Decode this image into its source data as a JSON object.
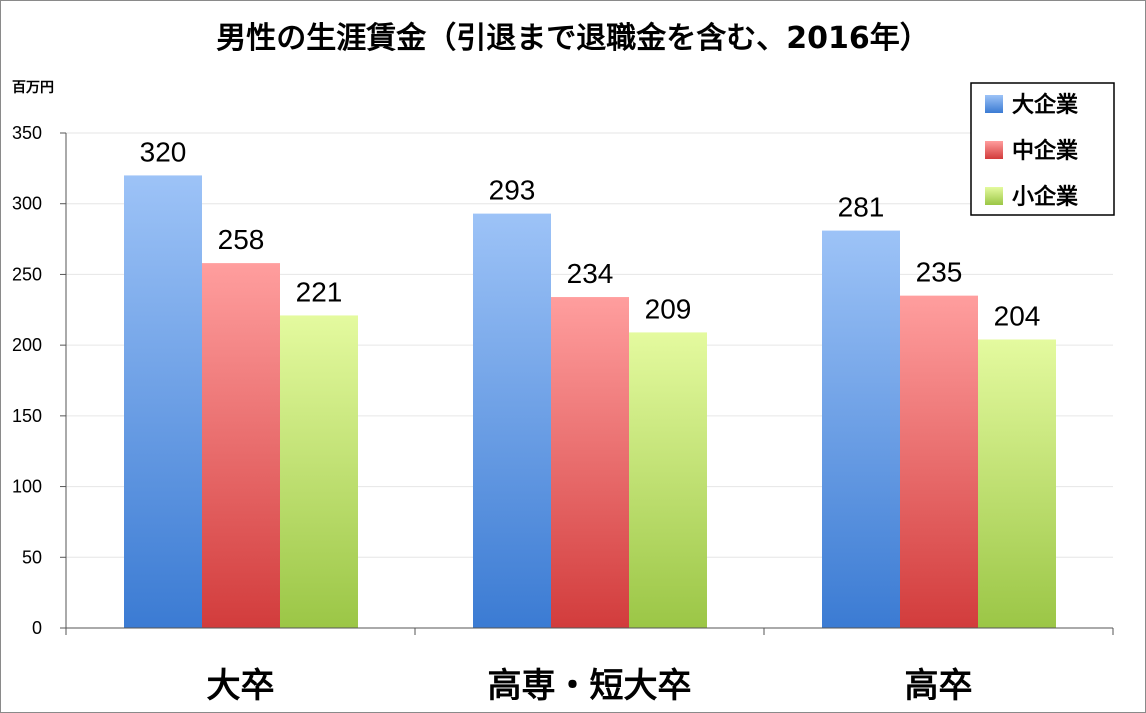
{
  "chart_data": {
    "type": "bar",
    "title": "男性の生涯賃金（引退まで退職金を含む、2016年）",
    "ylabel": "百万円",
    "xlabel": "",
    "ylim": [
      0,
      350
    ],
    "yticks": [
      0,
      50,
      100,
      150,
      200,
      250,
      300,
      350
    ],
    "categories": [
      "大卒",
      "高専・短大卒",
      "高卒"
    ],
    "series": [
      {
        "name": "大企業",
        "values": [
          320,
          293,
          281
        ],
        "color_top": "#9dc3f7",
        "color_bottom": "#3b7bd3"
      },
      {
        "name": "中企業",
        "values": [
          258,
          234,
          235
        ],
        "color_top": "#ff9e9e",
        "color_bottom": "#d23c3c"
      },
      {
        "name": "小企業",
        "values": [
          221,
          209,
          204
        ],
        "color_top": "#e4fa9f",
        "color_bottom": "#9bc646"
      }
    ],
    "legend_position": "top-right",
    "grid": true,
    "data_labels": true
  }
}
